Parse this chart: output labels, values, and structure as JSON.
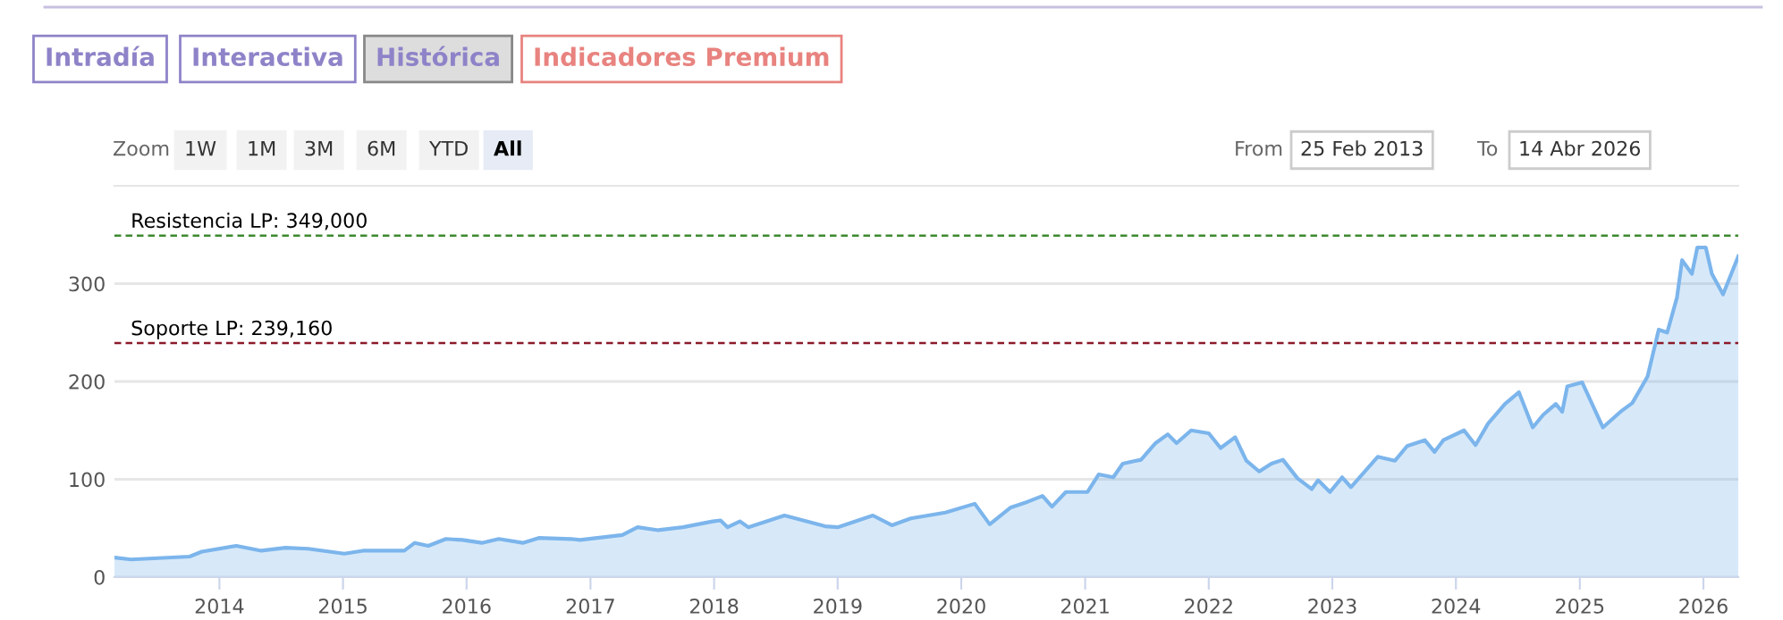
{
  "chart_data": {
    "type": "area",
    "x": [
      "2013-02-25",
      "2013-04-15",
      "2013-10-05",
      "2013-11-10",
      "2014-02-20",
      "2014-05-05",
      "2014-07-15",
      "2014-09-20",
      "2015-01-05",
      "2015-03-01",
      "2015-07-01",
      "2015-08-01",
      "2015-09-10",
      "2015-11-01",
      "2015-12-20",
      "2016-02-15",
      "2016-04-05",
      "2016-06-15",
      "2016-08-01",
      "2016-11-05",
      "2016-12-01",
      "2017-04-05",
      "2017-05-20",
      "2017-07-20",
      "2017-10-01",
      "2017-12-28",
      "2018-01-20",
      "2018-02-10",
      "2018-03-18",
      "2018-04-12",
      "2018-07-28",
      "2018-11-25",
      "2019-01-01",
      "2019-04-15",
      "2019-06-10",
      "2019-08-05",
      "2019-11-15",
      "2020-02-10",
      "2020-03-25",
      "2020-05-25",
      "2020-07-15",
      "2020-08-28",
      "2020-09-25",
      "2020-11-05",
      "2021-01-08",
      "2021-02-10",
      "2021-03-25",
      "2021-04-22",
      "2021-06-15",
      "2021-07-28",
      "2021-09-02",
      "2021-09-28",
      "2021-11-10",
      "2022-01-01",
      "2022-02-05",
      "2022-03-20",
      "2022-04-22",
      "2022-05-30",
      "2022-07-05",
      "2022-08-08",
      "2022-09-20",
      "2022-11-01",
      "2022-11-20",
      "2022-12-25",
      "2023-01-30",
      "2023-02-25",
      "2023-05-15",
      "2023-07-05",
      "2023-08-10",
      "2023-10-01",
      "2023-10-30",
      "2023-11-25",
      "2024-01-25",
      "2024-02-28",
      "2024-04-05",
      "2024-05-25",
      "2024-07-05",
      "2024-08-15",
      "2024-09-15",
      "2024-10-22",
      "2024-11-10",
      "2024-11-25",
      "2025-01-08",
      "2025-03-10",
      "2025-05-01",
      "2025-06-05",
      "2025-07-20",
      "2025-08-22",
      "2025-09-16",
      "2025-10-15",
      "2025-10-30",
      "2025-11-28",
      "2025-12-14",
      "2026-01-08",
      "2026-01-26",
      "2026-02-28",
      "2026-04-14"
    ],
    "series": [
      {
        "color": "#7cb5ec",
        "values": [
          20,
          18,
          21,
          26,
          32,
          27,
          30,
          29,
          24,
          27,
          27,
          35,
          32,
          39,
          38,
          35,
          39,
          35,
          40,
          39,
          38,
          43,
          51,
          48,
          51,
          57,
          58,
          51,
          57,
          51,
          63,
          52,
          51,
          63,
          53,
          60,
          66,
          75,
          54,
          71,
          77,
          83,
          72,
          87,
          87,
          105,
          102,
          116,
          120,
          137,
          146,
          137,
          150,
          147,
          132,
          143,
          119,
          108,
          116,
          120,
          101,
          90,
          99,
          87,
          102,
          92,
          123,
          119,
          134,
          140,
          128,
          140,
          150,
          135,
          157,
          177,
          189,
          153,
          166,
          177,
          169,
          195,
          199,
          153,
          169,
          178,
          205,
          253,
          250,
          286,
          324,
          310,
          337,
          337,
          310,
          289,
          328
        ]
      }
    ],
    "xlim": [
      "2013-02-25",
      "2026-04-14"
    ],
    "xticks": [
      {
        "value": "2014-01-01",
        "label": "2014"
      },
      {
        "value": "2015-01-01",
        "label": "2015"
      },
      {
        "value": "2016-01-01",
        "label": "2016"
      },
      {
        "value": "2017-01-01",
        "label": "2017"
      },
      {
        "value": "2018-01-01",
        "label": "2018"
      },
      {
        "value": "2019-01-01",
        "label": "2019"
      },
      {
        "value": "2020-01-01",
        "label": "2020"
      },
      {
        "value": "2021-01-01",
        "label": "2021"
      },
      {
        "value": "2022-01-01",
        "label": "2022"
      },
      {
        "value": "2023-01-01",
        "label": "2023"
      },
      {
        "value": "2024-01-01",
        "label": "2024"
      },
      {
        "value": "2025-01-01",
        "label": "2025"
      },
      {
        "value": "2026-01-01",
        "label": "2026"
      }
    ],
    "ylim": [
      0,
      400
    ],
    "yticks": [
      0,
      100,
      200,
      300
    ],
    "grid": "y",
    "ref_lines": [
      {
        "axis": "y",
        "value": 349,
        "label": "Resistencia LP: 349,000",
        "color": "#3c8a2e",
        "line_style": "dashed"
      },
      {
        "axis": "y",
        "value": 239.16,
        "label": "Soporte LP: 239,160",
        "color": "#8b1a2a",
        "line_style": "dashed"
      }
    ],
    "annotations": [
      "Intradía",
      "Interactiva",
      "Histórica",
      "Indicadores Premium",
      "Zoom",
      "1W",
      "1M",
      "3M",
      "6M",
      "YTD",
      "All",
      "From",
      "25 Feb 2013",
      "To",
      "14 Abr 2026"
    ]
  }
}
